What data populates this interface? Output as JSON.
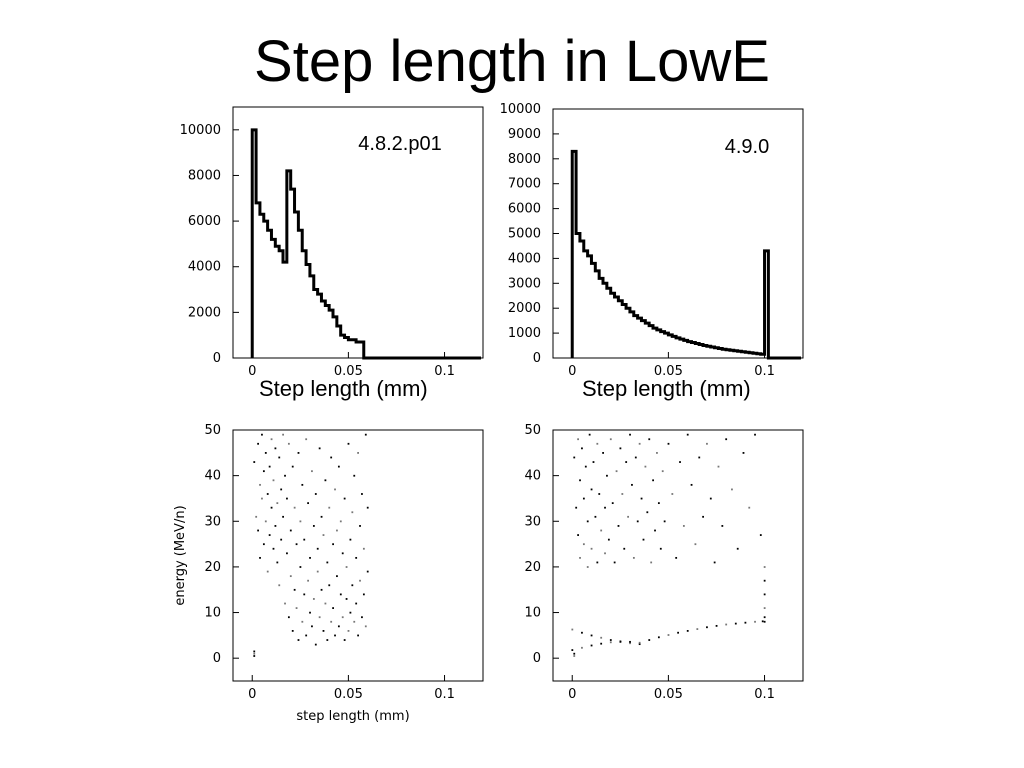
{
  "slide": {
    "title": "Step length in LowE"
  },
  "chart_data": [
    {
      "type": "histogram",
      "annotation": "4.8.2.p01",
      "xlabel": "Step length (mm)",
      "xlim": [
        -0.01,
        0.12
      ],
      "ylim": [
        0,
        11000
      ],
      "xticks": [
        {
          "v": 0,
          "t": "0"
        },
        {
          "v": 0.05,
          "t": "0.05"
        },
        {
          "v": 0.1,
          "t": "0.1"
        }
      ],
      "yticks": [
        {
          "v": 0,
          "t": "0"
        },
        {
          "v": 2000,
          "t": "2000"
        },
        {
          "v": 4000,
          "t": "4000"
        },
        {
          "v": 6000,
          "t": "6000"
        },
        {
          "v": 8000,
          "t": "8000"
        },
        {
          "v": 10000,
          "t": "10000"
        }
      ],
      "bin_width": 0.002,
      "bin_start": 0,
      "values": [
        10000,
        6800,
        6300,
        6000,
        5600,
        5200,
        4900,
        4700,
        4200,
        8200,
        7400,
        6400,
        5600,
        4700,
        4100,
        3600,
        3000,
        2800,
        2500,
        2300,
        2100,
        1800,
        1400,
        1000,
        900,
        800,
        800,
        700,
        700,
        0
      ]
    },
    {
      "type": "histogram",
      "annotation": "4.9.0",
      "xlabel": "Step length (mm)",
      "xlim": [
        -0.01,
        0.12
      ],
      "ylim": [
        0,
        10000
      ],
      "xticks": [
        {
          "v": 0,
          "t": "0"
        },
        {
          "v": 0.05,
          "t": "0.05"
        },
        {
          "v": 0.1,
          "t": "0.1"
        }
      ],
      "yticks": [
        {
          "v": 0,
          "t": "0"
        },
        {
          "v": 1000,
          "t": "1000"
        },
        {
          "v": 2000,
          "t": "2000"
        },
        {
          "v": 3000,
          "t": "3000"
        },
        {
          "v": 4000,
          "t": "4000"
        },
        {
          "v": 5000,
          "t": "5000"
        },
        {
          "v": 6000,
          "t": "6000"
        },
        {
          "v": 7000,
          "t": "7000"
        },
        {
          "v": 8000,
          "t": "8000"
        },
        {
          "v": 9000,
          "t": "9000"
        },
        {
          "v": 10000,
          "t": "10000"
        }
      ],
      "bin_width": 0.002,
      "bin_start": 0,
      "values": [
        8300,
        5000,
        4700,
        4300,
        4100,
        3800,
        3500,
        3200,
        3000,
        2800,
        2600,
        2450,
        2300,
        2150,
        2000,
        1850,
        1700,
        1600,
        1500,
        1400,
        1300,
        1200,
        1130,
        1060,
        1000,
        930,
        870,
        810,
        760,
        710,
        660,
        620,
        580,
        540,
        500,
        470,
        440,
        410,
        380,
        350,
        330,
        310,
        290,
        270,
        250,
        230,
        210,
        190,
        170,
        150,
        4300
      ]
    },
    {
      "type": "scatter",
      "xlabel": "step length (mm)",
      "ylabel": "energy (MeV/n)",
      "xlim": [
        -0.01,
        0.12
      ],
      "ylim": [
        -5,
        50
      ],
      "xticks": [
        {
          "v": 0,
          "t": "0"
        },
        {
          "v": 0.05,
          "t": "0.05"
        },
        {
          "v": 0.1,
          "t": "0.1"
        }
      ],
      "yticks": [
        {
          "v": 0,
          "t": "0"
        },
        {
          "v": 10,
          "t": "10"
        },
        {
          "v": 20,
          "t": "20"
        },
        {
          "v": 30,
          "t": "30"
        },
        {
          "v": 40,
          "t": "40"
        },
        {
          "v": 50,
          "t": "50"
        }
      ],
      "points": [
        [
          0.001,
          1.5
        ],
        [
          0.001,
          1.0
        ],
        [
          0.001,
          0.5
        ],
        [
          0.001,
          43
        ],
        [
          0.002,
          31
        ],
        [
          0.003,
          47
        ],
        [
          0.003,
          28
        ],
        [
          0.004,
          38
        ],
        [
          0.004,
          22
        ],
        [
          0.005,
          49
        ],
        [
          0.005,
          35
        ],
        [
          0.006,
          41
        ],
        [
          0.006,
          25
        ],
        [
          0.007,
          30
        ],
        [
          0.007,
          45
        ],
        [
          0.008,
          36
        ],
        [
          0.008,
          19
        ],
        [
          0.009,
          42
        ],
        [
          0.009,
          27
        ],
        [
          0.01,
          48
        ],
        [
          0.01,
          33
        ],
        [
          0.011,
          24
        ],
        [
          0.011,
          39
        ],
        [
          0.012,
          46
        ],
        [
          0.012,
          29
        ],
        [
          0.013,
          34
        ],
        [
          0.013,
          21
        ],
        [
          0.014,
          44
        ],
        [
          0.014,
          16
        ],
        [
          0.015,
          37
        ],
        [
          0.015,
          26
        ],
        [
          0.016,
          49
        ],
        [
          0.016,
          31
        ],
        [
          0.017,
          40
        ],
        [
          0.017,
          12
        ],
        [
          0.018,
          23
        ],
        [
          0.018,
          35
        ],
        [
          0.019,
          47
        ],
        [
          0.019,
          9
        ],
        [
          0.02,
          28
        ],
        [
          0.02,
          18
        ],
        [
          0.021,
          42
        ],
        [
          0.021,
          6
        ],
        [
          0.022,
          33
        ],
        [
          0.022,
          15
        ],
        [
          0.023,
          25
        ],
        [
          0.023,
          11
        ],
        [
          0.024,
          45
        ],
        [
          0.024,
          4
        ],
        [
          0.025,
          30
        ],
        [
          0.025,
          20
        ],
        [
          0.026,
          38
        ],
        [
          0.026,
          8
        ],
        [
          0.027,
          14
        ],
        [
          0.027,
          26
        ],
        [
          0.028,
          48
        ],
        [
          0.028,
          5
        ],
        [
          0.029,
          34
        ],
        [
          0.029,
          17
        ],
        [
          0.03,
          22
        ],
        [
          0.03,
          10
        ],
        [
          0.031,
          41
        ],
        [
          0.031,
          7
        ],
        [
          0.032,
          29
        ],
        [
          0.032,
          13
        ],
        [
          0.033,
          36
        ],
        [
          0.033,
          3
        ],
        [
          0.034,
          19
        ],
        [
          0.034,
          24
        ],
        [
          0.035,
          46
        ],
        [
          0.035,
          9
        ],
        [
          0.036,
          31
        ],
        [
          0.036,
          15
        ],
        [
          0.037,
          27
        ],
        [
          0.037,
          6
        ],
        [
          0.038,
          39
        ],
        [
          0.038,
          12
        ],
        [
          0.039,
          21
        ],
        [
          0.039,
          4
        ],
        [
          0.04,
          33
        ],
        [
          0.04,
          16
        ],
        [
          0.041,
          44
        ],
        [
          0.041,
          8
        ],
        [
          0.042,
          25
        ],
        [
          0.042,
          11
        ],
        [
          0.043,
          37
        ],
        [
          0.043,
          5
        ],
        [
          0.044,
          18
        ],
        [
          0.044,
          28
        ],
        [
          0.045,
          42
        ],
        [
          0.045,
          7
        ],
        [
          0.046,
          30
        ],
        [
          0.046,
          14
        ],
        [
          0.047,
          23
        ],
        [
          0.047,
          9
        ],
        [
          0.048,
          35
        ],
        [
          0.048,
          4
        ],
        [
          0.049,
          20
        ],
        [
          0.049,
          13
        ],
        [
          0.05,
          47
        ],
        [
          0.05,
          6
        ],
        [
          0.051,
          26
        ],
        [
          0.051,
          10
        ],
        [
          0.052,
          32
        ],
        [
          0.052,
          16
        ],
        [
          0.053,
          40
        ],
        [
          0.053,
          8
        ],
        [
          0.054,
          22
        ],
        [
          0.054,
          12
        ],
        [
          0.055,
          45
        ],
        [
          0.055,
          5
        ],
        [
          0.056,
          29
        ],
        [
          0.056,
          17
        ],
        [
          0.057,
          36
        ],
        [
          0.057,
          9
        ],
        [
          0.058,
          24
        ],
        [
          0.058,
          14
        ],
        [
          0.059,
          49
        ],
        [
          0.059,
          7
        ],
        [
          0.06,
          33
        ],
        [
          0.06,
          19
        ]
      ]
    },
    {
      "type": "scatter",
      "xlim": [
        -0.01,
        0.12
      ],
      "ylim": [
        -5,
        50
      ],
      "xticks": [
        {
          "v": 0,
          "t": "0"
        },
        {
          "v": 0.05,
          "t": "0.05"
        },
        {
          "v": 0.1,
          "t": "0.1"
        }
      ],
      "yticks": [
        {
          "v": 0,
          "t": "0"
        },
        {
          "v": 10,
          "t": "10"
        },
        {
          "v": 20,
          "t": "20"
        },
        {
          "v": 30,
          "t": "30"
        },
        {
          "v": 40,
          "t": "40"
        },
        {
          "v": 50,
          "t": "50"
        }
      ],
      "points": [
        [
          0.001,
          1.0
        ],
        [
          0.001,
          0.5
        ],
        [
          0.001,
          44
        ],
        [
          0.002,
          33
        ],
        [
          0.003,
          48
        ],
        [
          0.003,
          27
        ],
        [
          0.004,
          39
        ],
        [
          0.004,
          22
        ],
        [
          0.005,
          46
        ],
        [
          0.006,
          35
        ],
        [
          0.006,
          25
        ],
        [
          0.007,
          42
        ],
        [
          0.008,
          30
        ],
        [
          0.008,
          20
        ],
        [
          0.009,
          49
        ],
        [
          0.01,
          37
        ],
        [
          0.01,
          24
        ],
        [
          0.011,
          43
        ],
        [
          0.012,
          31
        ],
        [
          0.013,
          47
        ],
        [
          0.013,
          21
        ],
        [
          0.014,
          36
        ],
        [
          0.015,
          28
        ],
        [
          0.016,
          45
        ],
        [
          0.017,
          33
        ],
        [
          0.017,
          23
        ],
        [
          0.018,
          40
        ],
        [
          0.019,
          26
        ],
        [
          0.02,
          48
        ],
        [
          0.021,
          34
        ],
        [
          0.022,
          21
        ],
        [
          0.023,
          41
        ],
        [
          0.024,
          29
        ],
        [
          0.025,
          46
        ],
        [
          0.026,
          36
        ],
        [
          0.027,
          24
        ],
        [
          0.028,
          43
        ],
        [
          0.029,
          31
        ],
        [
          0.03,
          49
        ],
        [
          0.031,
          38
        ],
        [
          0.032,
          22
        ],
        [
          0.033,
          44
        ],
        [
          0.034,
          30
        ],
        [
          0.035,
          47
        ],
        [
          0.036,
          35
        ],
        [
          0.037,
          26
        ],
        [
          0.038,
          42
        ],
        [
          0.039,
          32
        ],
        [
          0.04,
          48
        ],
        [
          0.041,
          21
        ],
        [
          0.042,
          39
        ],
        [
          0.043,
          28
        ],
        [
          0.044,
          45
        ],
        [
          0.045,
          34
        ],
        [
          0.046,
          24
        ],
        [
          0.047,
          41
        ],
        [
          0.048,
          30
        ],
        [
          0.05,
          47
        ],
        [
          0.052,
          36
        ],
        [
          0.054,
          22
        ],
        [
          0.056,
          43
        ],
        [
          0.058,
          29
        ],
        [
          0.06,
          49
        ],
        [
          0.062,
          38
        ],
        [
          0.064,
          25
        ],
        [
          0.066,
          44
        ],
        [
          0.068,
          31
        ],
        [
          0.07,
          47
        ],
        [
          0.072,
          35
        ],
        [
          0.074,
          21
        ],
        [
          0.076,
          42
        ],
        [
          0.078,
          29
        ],
        [
          0.08,
          48
        ],
        [
          0.083,
          37
        ],
        [
          0.086,
          24
        ],
        [
          0.089,
          45
        ],
        [
          0.092,
          33
        ],
        [
          0.095,
          49
        ],
        [
          0.098,
          27
        ],
        [
          0.1,
          20
        ],
        [
          0.1,
          17
        ],
        [
          0.1,
          14
        ],
        [
          0.1,
          11
        ],
        [
          0.1,
          9
        ],
        [
          0.1,
          8
        ],
        [
          0.0,
          6.3
        ],
        [
          0.005,
          5.6
        ],
        [
          0.01,
          5.0
        ],
        [
          0.015,
          4.5
        ],
        [
          0.02,
          4.0
        ],
        [
          0.025,
          3.6
        ],
        [
          0.03,
          3.3
        ],
        [
          0.035,
          3.1
        ],
        [
          0.0,
          1.8
        ],
        [
          0.005,
          2.3
        ],
        [
          0.01,
          2.8
        ],
        [
          0.015,
          3.2
        ],
        [
          0.02,
          3.5
        ],
        [
          0.025,
          3.7
        ],
        [
          0.03,
          3.6
        ],
        [
          0.035,
          3.4
        ],
        [
          0.04,
          4.0
        ],
        [
          0.045,
          4.6
        ],
        [
          0.05,
          5.1
        ],
        [
          0.055,
          5.6
        ],
        [
          0.06,
          6.0
        ],
        [
          0.065,
          6.4
        ],
        [
          0.07,
          6.8
        ],
        [
          0.075,
          7.1
        ],
        [
          0.08,
          7.4
        ],
        [
          0.085,
          7.6
        ],
        [
          0.09,
          7.8
        ],
        [
          0.095,
          8.0
        ],
        [
          0.099,
          8.1
        ]
      ]
    }
  ]
}
